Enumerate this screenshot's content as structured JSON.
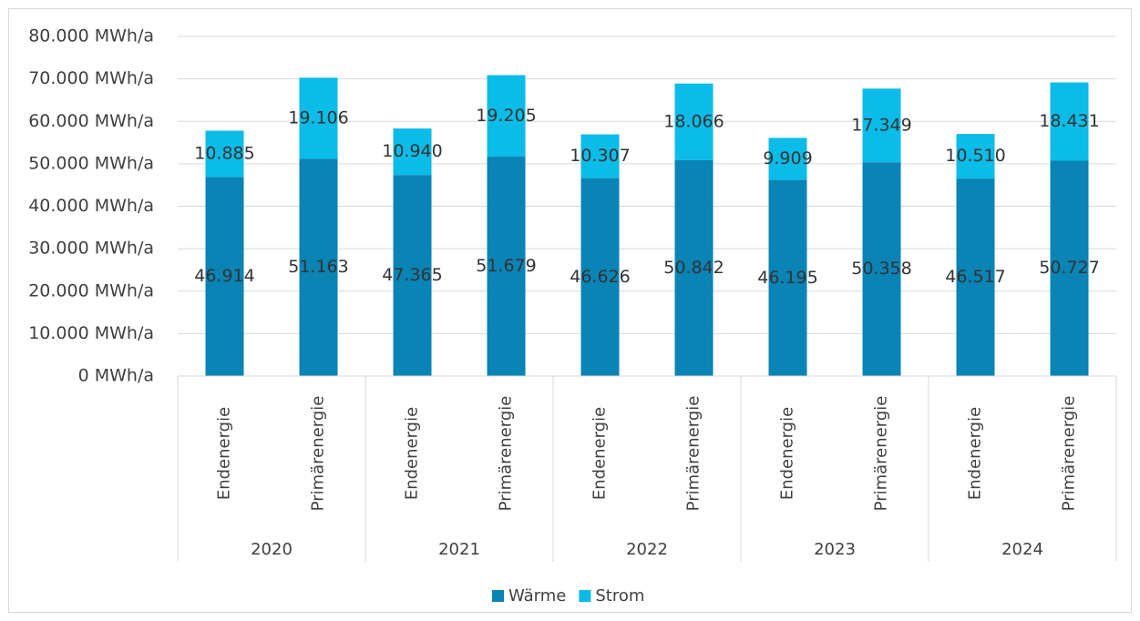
{
  "chart_data": {
    "type": "stacked_bar",
    "categories": [
      "Endenergie",
      "Primärenergie",
      "Endenergie",
      "Primärenergie",
      "Endenergie",
      "Primärenergie",
      "Endenergie",
      "Primärenergie",
      "Endenergie",
      "Primärenergie"
    ],
    "groups": [
      "2020",
      "2021",
      "2022",
      "2023",
      "2024"
    ],
    "series": [
      {
        "name": "Wärme",
        "color": "#0a83b5",
        "values": [
          46914,
          51163,
          47365,
          51679,
          46626,
          50842,
          46195,
          50358,
          46517,
          50727
        ],
        "value_labels": [
          "46.914",
          "51.163",
          "47.365",
          "51.679",
          "46.626",
          "50.842",
          "46.195",
          "50.358",
          "46.517",
          "50.727"
        ]
      },
      {
        "name": "Strom",
        "color": "#0bbbe8",
        "values": [
          10885,
          19106,
          10940,
          19205,
          10307,
          18066,
          9909,
          17349,
          10510,
          18431
        ],
        "value_labels": [
          "10.885",
          "19.106",
          "10.940",
          "19.205",
          "10.307",
          "18.066",
          "9.909",
          "17.349",
          "10.510",
          "18.431"
        ]
      }
    ],
    "ylim": [
      0,
      80000
    ],
    "yticks": [
      {
        "value": 0,
        "label": "0 MWh/a"
      },
      {
        "value": 10000,
        "label": "10.000 MWh/a"
      },
      {
        "value": 20000,
        "label": "20.000 MWh/a"
      },
      {
        "value": 30000,
        "label": "30.000 MWh/a"
      },
      {
        "value": 40000,
        "label": "40.000 MWh/a"
      },
      {
        "value": 50000,
        "label": "50.000 MWh/a"
      },
      {
        "value": 60000,
        "label": "60.000 MWh/a"
      },
      {
        "value": 70000,
        "label": "70.000 MWh/a"
      },
      {
        "value": 80000,
        "label": "80.000 MWh/a"
      }
    ],
    "grid": true,
    "legend": "bottom"
  }
}
